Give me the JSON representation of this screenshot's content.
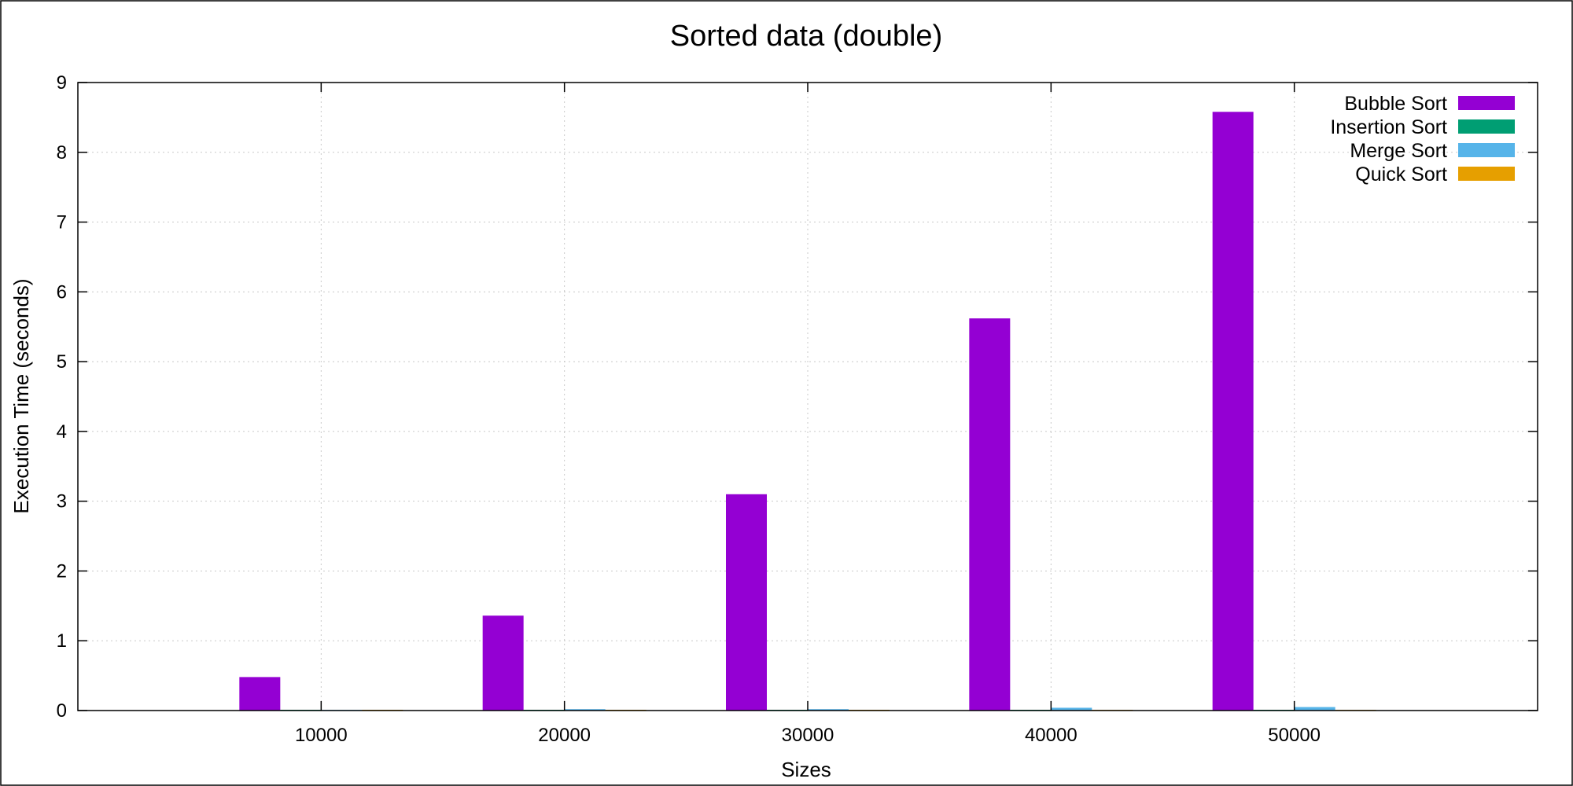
{
  "chart_data": {
    "type": "bar",
    "title": "Sorted data (double)",
    "xlabel": "Sizes",
    "ylabel": "Execution Time (seconds)",
    "categories": [
      "10000",
      "20000",
      "30000",
      "40000",
      "50000"
    ],
    "ylim": [
      0,
      9
    ],
    "yticks": [
      "0",
      "1",
      "2",
      "3",
      "4",
      "5",
      "6",
      "7",
      "8",
      "9"
    ],
    "grid": true,
    "legend_position": "top-right",
    "series": [
      {
        "name": "Bubble Sort",
        "color": "#9400d3",
        "values": [
          0.48,
          1.36,
          3.1,
          5.62,
          8.58
        ]
      },
      {
        "name": "Insertion Sort",
        "color": "#009e73",
        "values": [
          0.0,
          0.0,
          0.0,
          0.0,
          0.0
        ]
      },
      {
        "name": "Merge Sort",
        "color": "#56b4e9",
        "values": [
          0.01,
          0.02,
          0.02,
          0.04,
          0.05
        ]
      },
      {
        "name": "Quick Sort",
        "color": "#e69f00",
        "values": [
          0.0,
          0.0,
          0.0,
          0.01,
          0.01
        ]
      }
    ]
  }
}
